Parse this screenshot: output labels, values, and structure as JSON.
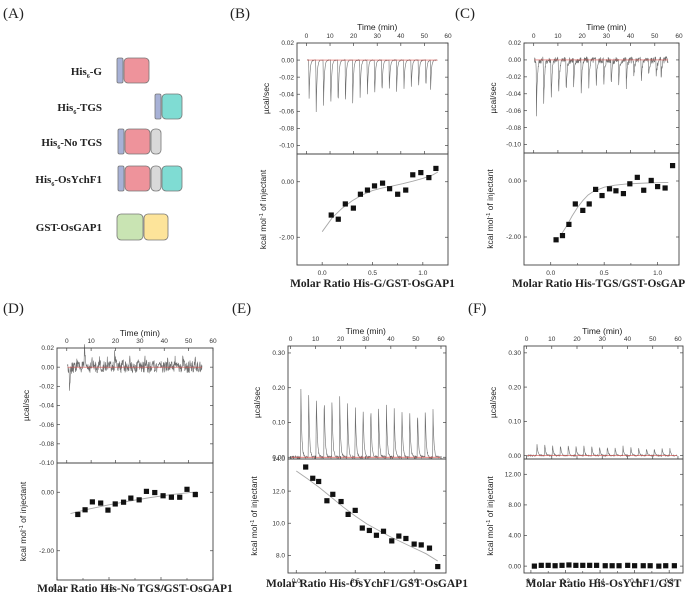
{
  "figure": {
    "panel_labels": [
      "(A)",
      "(B)",
      "(C)",
      "(D)",
      "(E)",
      "(F)"
    ],
    "constructs": {
      "title": "(A)",
      "items": [
        {
          "name": "His6-G",
          "prefix": "His",
          "sub": "6",
          "suffix": "-G",
          "domains": [
            "his",
            "G"
          ]
        },
        {
          "name": "His6-TGS",
          "prefix": "His",
          "sub": "6",
          "suffix": "-TGS",
          "domains": [
            "his",
            "TGS"
          ]
        },
        {
          "name": "His6-No TGS",
          "prefix": "His",
          "sub": "6",
          "suffix": "-No TGS",
          "domains": [
            "his",
            "G",
            "linker"
          ]
        },
        {
          "name": "His6-OsYchF1",
          "prefix": "His",
          "sub": "6",
          "suffix": "-OsYchF1",
          "domains": [
            "his",
            "G",
            "linker",
            "TGS"
          ]
        },
        {
          "name": "GST-OsGAP1",
          "prefix": "GST-OsGAP1",
          "sub": "",
          "suffix": "",
          "domains": [
            "GST",
            "GAP"
          ]
        }
      ],
      "domain_colors": {
        "his": "#a7b1d6",
        "G": "#ee939b",
        "TGS": "#7fdcd3",
        "linker": "#d9d9d9",
        "GST": "#c9e4b3",
        "GAP": "#fde49a"
      }
    },
    "colors": {
      "trace": "#6e6e6e",
      "baseline": "#d9534f",
      "fit": "#a8a8a8",
      "marker": "#111111",
      "axis": "#444444"
    }
  },
  "chart_data": [
    {
      "panel": "(B)",
      "type": "scatter",
      "top": {
        "xlabel": "Time (min)",
        "ylabel": "µcal/sec",
        "xlim": [
          -4,
          60
        ],
        "ylim": [
          -0.11,
          0.02
        ],
        "xticks": [
          0,
          10,
          20,
          30,
          40,
          50,
          60
        ],
        "yticks": [
          0.02,
          0.0,
          -0.02,
          -0.04,
          -0.06,
          -0.08,
          -0.1
        ],
        "ytick_labels": [
          "0.02",
          "0.00",
          "-0.02",
          "-0.04",
          "-0.06",
          "-0.08",
          "-0.10"
        ],
        "injection_times": [
          1,
          4,
          7.1,
          10.2,
          13.3,
          16.4,
          19.5,
          22.6,
          25.7,
          28.8,
          31.9,
          35,
          38.1,
          41.2,
          44.3,
          47.4,
          50.5,
          52.5
        ],
        "peak_heights": [
          -0.067,
          -0.09,
          -0.084,
          -0.082,
          -0.08,
          -0.074,
          -0.071,
          -0.066,
          -0.063,
          -0.063,
          -0.058,
          -0.053,
          -0.052,
          -0.051,
          -0.05,
          -0.05,
          -0.049,
          -0.049
        ],
        "noise": 0.0005
      },
      "bottom": {
        "xlabel": "Molar Ratio His-G/GST-OsGAP1",
        "ylabel": "kcal mol-1 of injectant",
        "xlim": [
          -0.25,
          1.25
        ],
        "ylim": [
          -3.0,
          1.0
        ],
        "xticks": [
          0.0,
          0.5,
          1.0
        ],
        "xtick_labels": [
          "0.0",
          "0.5",
          "1.0"
        ],
        "yticks": [
          0.0,
          -2.0
        ],
        "ytick_labels": [
          "0.00",
          "-2.00"
        ],
        "x": [
          0.09,
          0.16,
          0.23,
          0.31,
          0.38,
          0.45,
          0.52,
          0.6,
          0.67,
          0.75,
          0.83,
          0.9,
          0.98,
          1.06,
          1.13
        ],
        "y": [
          -1.2,
          -1.35,
          -0.8,
          -0.95,
          -0.45,
          -0.3,
          -0.15,
          -0.05,
          -0.25,
          -0.45,
          -0.3,
          0.25,
          0.33,
          0.15,
          0.48
        ],
        "fit": [
          [
            0.0,
            -1.8
          ],
          [
            0.1,
            -1.3
          ],
          [
            0.2,
            -0.95
          ],
          [
            0.3,
            -0.68
          ],
          [
            0.4,
            -0.47
          ],
          [
            0.5,
            -0.32
          ],
          [
            0.6,
            -0.22
          ],
          [
            0.7,
            -0.15
          ],
          [
            0.8,
            -0.07
          ],
          [
            0.9,
            0.02
          ],
          [
            1.0,
            0.12
          ],
          [
            1.1,
            0.25
          ],
          [
            1.15,
            0.35
          ]
        ]
      }
    },
    {
      "panel": "(C)",
      "type": "scatter",
      "top": {
        "xlabel": "Time (min)",
        "ylabel": "µcal/sec",
        "xlim": [
          -4,
          60
        ],
        "ylim": [
          -0.11,
          0.02
        ],
        "xticks": [
          0,
          10,
          20,
          30,
          40,
          50,
          60
        ],
        "yticks": [
          0.02,
          0.0,
          -0.02,
          -0.04,
          -0.06,
          -0.08,
          -0.1
        ],
        "ytick_labels": [
          "0.02",
          "0.00",
          "-0.02",
          "-0.04",
          "-0.06",
          "-0.08",
          "-0.10"
        ],
        "injection_times": [
          1,
          4,
          7.1,
          10.2,
          13.3,
          16.4,
          19.5,
          22.6,
          25.7,
          28.8,
          31.9,
          35,
          38.1,
          41.2,
          44.3,
          47.4,
          50.5,
          52.5
        ],
        "peak_heights": [
          -0.096,
          -0.081,
          -0.072,
          -0.061,
          -0.059,
          -0.05,
          -0.055,
          -0.045,
          -0.043,
          -0.048,
          -0.04,
          -0.044,
          -0.045,
          -0.032,
          -0.037,
          -0.03,
          -0.029,
          -0.03
        ],
        "noise": 0.004
      },
      "bottom": {
        "xlabel": "Molar Ratio His-TGS/GST-OsGAP1",
        "ylabel": "kcal mol-1 of injectant",
        "xlim": [
          -0.25,
          1.2
        ],
        "ylim": [
          -3.0,
          1.0
        ],
        "xticks": [
          0.0,
          0.5,
          1.0
        ],
        "xtick_labels": [
          "0.0",
          "0.5",
          "1.0"
        ],
        "yticks": [
          0.0,
          -2.0
        ],
        "ytick_labels": [
          "0.00",
          "-2.00"
        ],
        "x": [
          0.05,
          0.11,
          0.17,
          0.23,
          0.3,
          0.36,
          0.42,
          0.48,
          0.55,
          0.61,
          0.68,
          0.74,
          0.81,
          0.87,
          0.94,
          1.0,
          1.07,
          1.14
        ],
        "y": [
          -2.1,
          -1.95,
          -1.55,
          -0.82,
          -1.05,
          -0.82,
          -0.3,
          -0.52,
          -0.28,
          -0.35,
          -0.45,
          -0.1,
          0.13,
          -0.33,
          0.02,
          -0.2,
          -0.25,
          0.55
        ],
        "fit": [
          [
            0.1,
            -1.9
          ],
          [
            0.15,
            -1.6
          ],
          [
            0.2,
            -1.25
          ],
          [
            0.25,
            -0.95
          ],
          [
            0.3,
            -0.7
          ],
          [
            0.35,
            -0.5
          ],
          [
            0.4,
            -0.37
          ],
          [
            0.5,
            -0.22
          ],
          [
            0.6,
            -0.15
          ],
          [
            0.7,
            -0.11
          ],
          [
            0.8,
            -0.09
          ],
          [
            0.9,
            -0.07
          ],
          [
            1.0,
            -0.06
          ],
          [
            1.1,
            -0.05
          ]
        ]
      }
    },
    {
      "panel": "(D)",
      "type": "scatter",
      "top": {
        "xlabel": "Time (min)",
        "ylabel": "µcal/sec",
        "xlim": [
          -4,
          60
        ],
        "ylim": [
          -0.1,
          0.02
        ],
        "xticks": [
          0,
          10,
          20,
          30,
          40,
          50,
          60
        ],
        "yticks": [
          0.02,
          0.0,
          -0.02,
          -0.04,
          -0.06,
          -0.08,
          -0.1
        ],
        "ytick_labels": [
          "0.02",
          "0.00",
          "-0.02",
          "-0.04",
          "-0.06",
          "-0.08",
          "-0.10"
        ],
        "injection_times": [
          1,
          4,
          7.1,
          10.2,
          13.3,
          16.4,
          19.5,
          22.6,
          25.7,
          28.8,
          31.9,
          35,
          38.1,
          41.2,
          44.3,
          47.4,
          50.5,
          52.5
        ],
        "peak_heights": [
          -0.03,
          0.012,
          0.03,
          0.01,
          0.012,
          0.01,
          0.022,
          0.012,
          0.012,
          0.01,
          0.012,
          0.012,
          0.01,
          0.012,
          0.012,
          0.012,
          0.012,
          0.012
        ],
        "noise": 0.006
      },
      "bottom": {
        "xlabel": "Molar Ratio His-No TGS/GST-OsGAP1",
        "ylabel": "kcal mol-1 of injectant",
        "xlim": [
          0.0,
          1.5
        ],
        "ylim": [
          -3.0,
          1.0
        ],
        "xticks": [
          0.0,
          0.5,
          1.0,
          1.5
        ],
        "xtick_labels": [
          "0.0",
          "0.5",
          "1.0",
          "1.5"
        ],
        "yticks": [
          0.0,
          -2.0
        ],
        "ytick_labels": [
          "0.00",
          "-2.00"
        ],
        "x": [
          0.2,
          0.27,
          0.34,
          0.42,
          0.49,
          0.56,
          0.64,
          0.71,
          0.79,
          0.86,
          0.94,
          1.02,
          1.1,
          1.18,
          1.25,
          1.33
        ],
        "y": [
          -0.76,
          -0.6,
          -0.33,
          -0.37,
          -0.61,
          -0.4,
          -0.34,
          -0.2,
          -0.26,
          0.03,
          -0.01,
          -0.12,
          -0.17,
          -0.17,
          0.1,
          -0.08
        ],
        "fit": [
          [
            0.13,
            -0.73
          ],
          [
            0.3,
            -0.58
          ],
          [
            0.5,
            -0.43
          ],
          [
            0.7,
            -0.3
          ],
          [
            0.9,
            -0.18
          ],
          [
            1.1,
            -0.08
          ],
          [
            1.3,
            0.0
          ],
          [
            1.35,
            0.02
          ]
        ]
      }
    },
    {
      "panel": "(E)",
      "type": "scatter",
      "top": {
        "xlabel": "Time (min)",
        "ylabel": "µcal/sec",
        "xlim": [
          -1,
          62
        ],
        "ylim": [
          -0.005,
          0.32
        ],
        "xticks": [
          0,
          10,
          20,
          30,
          40,
          50,
          60
        ],
        "yticks": [
          0.3,
          0.2,
          0.1,
          0.0
        ],
        "ytick_labels": [
          "0.30",
          "0.20",
          "0.10",
          "0.00"
        ],
        "injection_times": [
          4,
          7.1,
          10.2,
          13.3,
          16.4,
          19.5,
          22.6,
          25.7,
          28.8,
          31.9,
          35,
          38.1,
          41.2,
          44.3,
          47.4,
          50.5,
          53.6,
          56.7
        ],
        "peak_heights": [
          0.295,
          0.287,
          0.275,
          0.262,
          0.25,
          0.243,
          0.228,
          0.225,
          0.22,
          0.22,
          0.218,
          0.217,
          0.21,
          0.207,
          0.206,
          0.205,
          0.2,
          0.19
        ],
        "noise": 0.004
      },
      "bottom": {
        "xlabel": "Molar Ratio His-OsYchF1/GST-OsGAP1",
        "ylabel": "kcal mol-1 of injectant",
        "xlim": [
          -0.07,
          1.27
        ],
        "ylim": [
          6.9,
          14.0
        ],
        "xticks": [
          0.0,
          0.5,
          1.0
        ],
        "xtick_labels": [
          "0.0",
          "0.5",
          "1.0"
        ],
        "yticks": [
          14.0,
          12.0,
          10.0,
          8.0
        ],
        "ytick_labels": [
          "14.0",
          "12.0",
          "10.0",
          "8.0"
        ],
        "x": [
          0.08,
          0.14,
          0.19,
          0.26,
          0.31,
          0.38,
          0.44,
          0.5,
          0.56,
          0.62,
          0.68,
          0.74,
          0.81,
          0.87,
          0.93,
          1.0,
          1.06,
          1.13,
          1.2
        ],
        "y": [
          13.5,
          12.8,
          12.6,
          11.4,
          11.8,
          11.35,
          10.55,
          10.8,
          9.7,
          9.55,
          9.25,
          9.5,
          8.9,
          9.2,
          9.05,
          8.7,
          8.65,
          8.45,
          7.3
        ],
        "fit": [
          [
            0.0,
            13.25
          ],
          [
            0.1,
            12.75
          ],
          [
            0.2,
            12.2
          ],
          [
            0.3,
            11.6
          ],
          [
            0.4,
            11.0
          ],
          [
            0.5,
            10.45
          ],
          [
            0.6,
            9.95
          ],
          [
            0.7,
            9.55
          ],
          [
            0.8,
            9.15
          ],
          [
            0.9,
            8.8
          ],
          [
            1.0,
            8.45
          ],
          [
            1.1,
            8.1
          ],
          [
            1.2,
            7.65
          ]
        ]
      }
    },
    {
      "panel": "(F)",
      "type": "scatter",
      "top": {
        "xlabel": "Time (min)",
        "ylabel": "µcal/sec",
        "xlim": [
          -1,
          62
        ],
        "ylim": [
          -0.01,
          0.32
        ],
        "xticks": [
          0,
          10,
          20,
          30,
          40,
          50,
          60
        ],
        "yticks": [
          0.3,
          0.2,
          0.1,
          0.0
        ],
        "ytick_labels": [
          "0.30",
          "0.20",
          "0.10",
          "0.00"
        ],
        "injection_times": [
          4,
          7.1,
          10.2,
          13.3,
          16.4,
          19.5,
          22.6,
          25.7,
          28.8,
          31.9,
          35,
          38.1,
          41.2,
          44.3,
          47.4,
          50.5,
          53.6,
          56.7
        ],
        "peak_heights": [
          0.052,
          0.05,
          0.047,
          0.046,
          0.047,
          0.04,
          0.045,
          0.042,
          0.04,
          0.037,
          0.035,
          0.038,
          0.037,
          0.032,
          0.034,
          0.031,
          0.031,
          0.029
        ],
        "noise": 0.002
      },
      "bottom": {
        "xlabel": "Molar Ratio His-OsYchF1/GST",
        "ylabel": "kcal mol-1 of injectant",
        "xlim": [
          -0.04,
          0.88
        ],
        "ylim": [
          -0.9,
          14.0
        ],
        "xticks": [
          0.0,
          0.2,
          0.4,
          0.6,
          0.8
        ],
        "xtick_labels": [
          "0.0",
          "0.2",
          "0.4",
          "0.6",
          "0.8"
        ],
        "yticks": [
          12.0,
          8.0,
          4.0,
          0.0
        ],
        "ytick_labels": [
          "12.00",
          "8.00",
          "4.00",
          "0.00"
        ],
        "x": [
          0.02,
          0.06,
          0.1,
          0.14,
          0.18,
          0.22,
          0.26,
          0.3,
          0.34,
          0.38,
          0.43,
          0.47,
          0.51,
          0.56,
          0.6,
          0.65,
          0.69,
          0.74,
          0.78,
          0.83
        ],
        "y": [
          0.0,
          0.1,
          0.1,
          0.05,
          0.1,
          0.15,
          0.1,
          0.1,
          0.1,
          0.1,
          0.05,
          0.05,
          0.05,
          0.1,
          0.05,
          0.05,
          0.05,
          0.0,
          0.05,
          0.05
        ],
        "fit": []
      }
    }
  ]
}
